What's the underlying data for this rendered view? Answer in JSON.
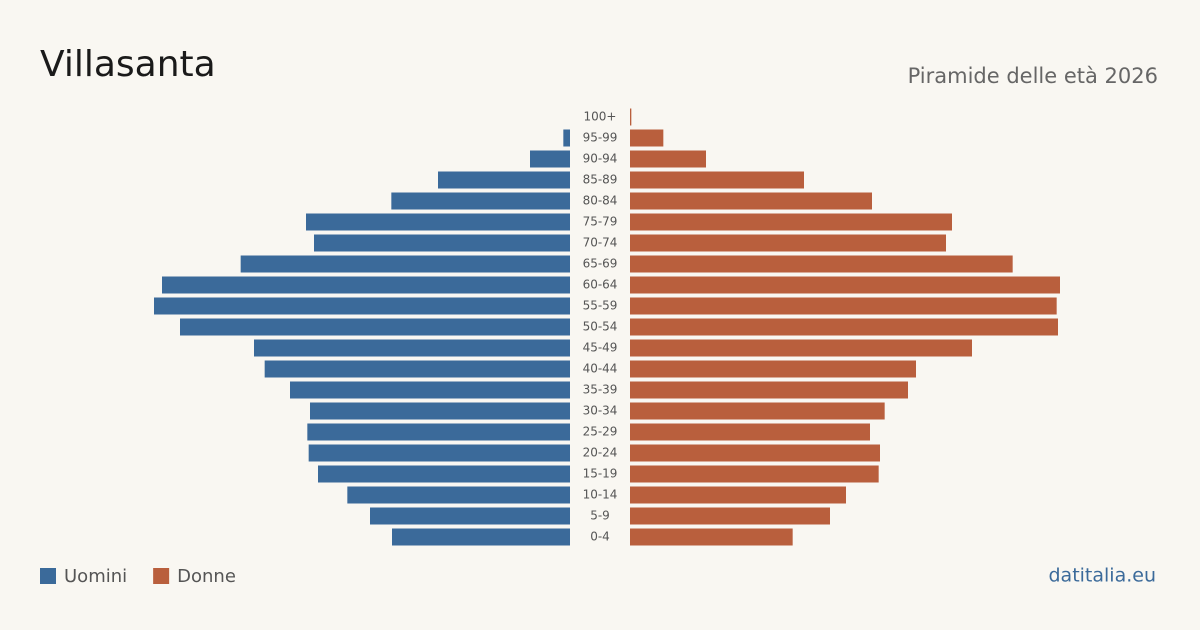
{
  "chart_data": {
    "type": "pyramid",
    "title": "Villasanta",
    "subtitle": "Piramide delle età 2026",
    "source": "datitalia.eu",
    "categories": [
      "100+",
      "95-99",
      "90-94",
      "85-89",
      "80-84",
      "75-79",
      "70-74",
      "65-69",
      "60-64",
      "55-59",
      "50-54",
      "45-49",
      "40-44",
      "35-39",
      "30-34",
      "25-29",
      "20-24",
      "15-19",
      "10-14",
      "5-9",
      "0-4"
    ],
    "series": [
      {
        "name": "Uomini",
        "color": "#3b6a9a",
        "values": [
          0,
          10,
          60,
          198,
          268,
          396,
          384,
          494,
          612,
          624,
          585,
          474,
          458,
          420,
          390,
          394,
          392,
          378,
          334,
          300,
          267
        ]
      },
      {
        "name": "Donne",
        "color": "#b95f3d",
        "values": [
          2,
          50,
          114,
          261,
          363,
          483,
          474,
          574,
          645,
          640,
          642,
          513,
          429,
          417,
          382,
          360,
          375,
          373,
          324,
          300,
          244
        ]
      }
    ]
  }
}
